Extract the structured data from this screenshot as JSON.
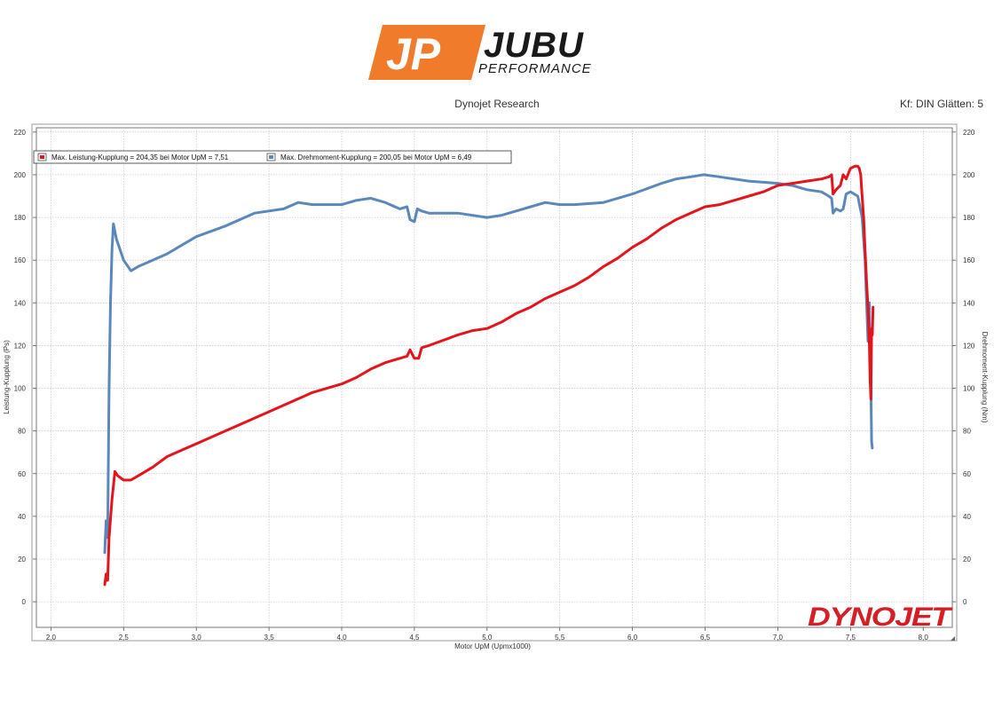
{
  "brand": {
    "logo_letters": "JP",
    "name": "JUBU",
    "tagline": "PERFORMANCE",
    "accent_color": "#f07b2a",
    "watermark": "DYNOJET",
    "watermark_color": "#d51f26"
  },
  "header": {
    "title": "Dynojet Research",
    "right": "Kf: DIN Glätten: 5"
  },
  "chart_data": {
    "type": "line",
    "xlabel": "Motor UpM (Upmx1000)",
    "ylabel": "Leistung-Kupplung (Ps)",
    "y2label": "Drehmoment-Kupplung (Nm)",
    "xlim": [
      1.9,
      8.2
    ],
    "ylim": [
      -12,
      222
    ],
    "x_ticks": [
      "2,0",
      "2,5",
      "3,0",
      "3,5",
      "4,0",
      "4,5",
      "5,0",
      "5,5",
      "6,0",
      "6,5",
      "7,0",
      "7,5",
      "8,0"
    ],
    "y_ticks": [
      "0",
      "20",
      "40",
      "60",
      "80",
      "100",
      "120",
      "140",
      "160",
      "180",
      "200",
      "220"
    ],
    "grid": true,
    "legend_position": "top-left",
    "series": [
      {
        "name": "Max. Leistung-Kupplung = 204,35 bei Motor UpM = 7,51",
        "color": "#e3141b",
        "x": [
          2.37,
          2.38,
          2.39,
          2.4,
          2.42,
          2.44,
          2.46,
          2.5,
          2.55,
          2.6,
          2.7,
          2.8,
          2.9,
          3.0,
          3.2,
          3.4,
          3.6,
          3.8,
          4.0,
          4.1,
          4.2,
          4.3,
          4.4,
          4.45,
          4.47,
          4.5,
          4.53,
          4.55,
          4.6,
          4.8,
          4.9,
          5.0,
          5.1,
          5.2,
          5.3,
          5.4,
          5.5,
          5.6,
          5.7,
          5.8,
          5.9,
          6.0,
          6.1,
          6.2,
          6.3,
          6.4,
          6.5,
          6.6,
          6.7,
          6.8,
          6.9,
          7.0,
          7.1,
          7.2,
          7.3,
          7.35,
          7.37,
          7.38,
          7.4,
          7.43,
          7.45,
          7.47,
          7.5,
          7.53,
          7.55,
          7.56,
          7.57,
          7.58,
          7.59,
          7.6,
          7.61,
          7.62,
          7.63,
          7.635,
          7.64,
          7.645,
          7.65,
          7.655
        ],
        "values": [
          8,
          13,
          10,
          30,
          48,
          61,
          59,
          57,
          57,
          59,
          63,
          68,
          71,
          74,
          80,
          86,
          92,
          98,
          102,
          105,
          109,
          112,
          114,
          115,
          118,
          114,
          114,
          119,
          120,
          125,
          127,
          128,
          131,
          135,
          138,
          142,
          145,
          148,
          152,
          157,
          161,
          166,
          170,
          175,
          179,
          182,
          185,
          186,
          188,
          190,
          192,
          195,
          196,
          197,
          198,
          199,
          200,
          191,
          193,
          195,
          200,
          198,
          203,
          204,
          204,
          203,
          200,
          190,
          180,
          165,
          150,
          138,
          120,
          104,
          95,
          128,
          125,
          138
        ]
      },
      {
        "name": "Max. Drehmoment-Kupplung = 200,05 bei Motor UpM = 6,49",
        "color": "#5b88bb",
        "x": [
          2.37,
          2.38,
          2.39,
          2.4,
          2.41,
          2.42,
          2.43,
          2.45,
          2.5,
          2.55,
          2.6,
          2.7,
          2.8,
          2.9,
          3.0,
          3.2,
          3.4,
          3.6,
          3.7,
          3.8,
          4.0,
          4.1,
          4.2,
          4.3,
          4.4,
          4.45,
          4.47,
          4.5,
          4.52,
          4.55,
          4.6,
          4.8,
          5.0,
          5.1,
          5.2,
          5.3,
          5.4,
          5.5,
          5.6,
          5.8,
          6.0,
          6.2,
          6.3,
          6.4,
          6.49,
          6.6,
          6.8,
          7.0,
          7.1,
          7.2,
          7.3,
          7.35,
          7.37,
          7.38,
          7.4,
          7.43,
          7.45,
          7.47,
          7.5,
          7.55,
          7.58,
          7.6,
          7.62,
          7.63,
          7.635,
          7.64,
          7.645,
          7.65
        ],
        "values": [
          23,
          38,
          30,
          100,
          140,
          165,
          177,
          170,
          160,
          155,
          157,
          160,
          163,
          167,
          171,
          176,
          182,
          184,
          187,
          186,
          186,
          188,
          189,
          187,
          184,
          185,
          179,
          178,
          184,
          183,
          182,
          182,
          180,
          181,
          183,
          185,
          187,
          186,
          186,
          187,
          191,
          196,
          198,
          199,
          200,
          199,
          197,
          196,
          195,
          193,
          192,
          190,
          189,
          182,
          184,
          183,
          184,
          191,
          192,
          190,
          180,
          160,
          122,
          140,
          110,
          100,
          75,
          72
        ]
      }
    ]
  }
}
